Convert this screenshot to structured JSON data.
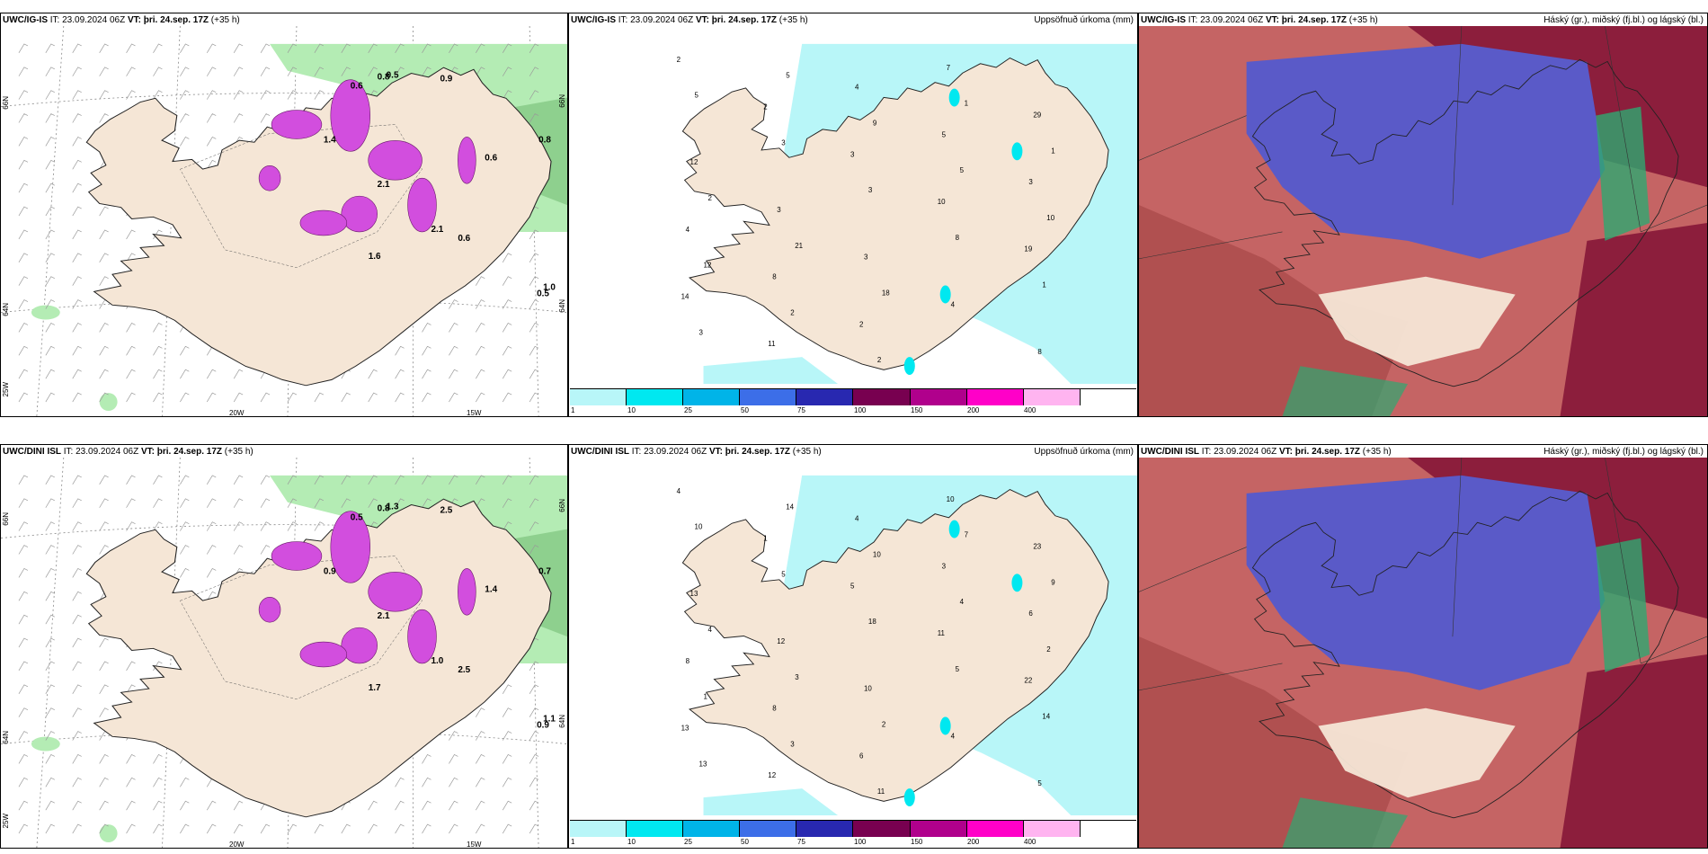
{
  "rows": [
    {
      "model": "UWC/IG-IS",
      "it_label": "IT:",
      "it_value": "23.09.2024 06Z",
      "vt_label": "VT:",
      "vt_value": "þri. 24.sep. 17Z",
      "lead": "(+35 h)"
    },
    {
      "model": "UWC/DINI ISL",
      "it_label": "IT:",
      "it_value": "23.09.2024 06Z",
      "vt_label": "VT:",
      "vt_value": "þri. 24.sep. 17Z",
      "lead": "(+35 h)"
    }
  ],
  "panel_titles": {
    "precip": "Uppsöfnuð úrkoma (mm)",
    "cloud": "Háský (gr.), miðský (fj.bl.) og lágský (bl.)"
  },
  "axis_ticks": {
    "lat_66": "66N",
    "lat_64": "64N",
    "lon_25": "25W",
    "lon_20": "20W",
    "lon_15": "15W"
  },
  "precip_legend": {
    "labels": [
      "1",
      "10",
      "25",
      "50",
      "75",
      "100",
      "150",
      "200",
      "400",
      ""
    ],
    "colors": [
      "#b8f6f8",
      "#00e8f0",
      "#00b4e8",
      "#3c6ee8",
      "#2828b0",
      "#780050",
      "#b0008c",
      "#ff00c8",
      "#ffb4f0",
      "#ffffff"
    ]
  },
  "colors": {
    "land": "#f5e6d6",
    "precip_light": "#b8f6f8",
    "precip_mid": "#00e8f0",
    "snow_green": "#b4ecb4",
    "snow_purple": "#d24ede",
    "cloud_low": "#5a5ac8",
    "cloud_mid": "#b83c3c",
    "cloud_high": "#8c1e3c",
    "cloud_green": "#2ea870"
  },
  "precip_values_top": [
    "2",
    "2",
    "3",
    "10",
    "19",
    "14",
    "11",
    "4",
    "5",
    "3",
    "4",
    "8",
    "2",
    "7",
    "29",
    "12",
    "3",
    "3",
    "4",
    "8",
    "5",
    "3",
    "3",
    "8",
    "1",
    "3",
    "5",
    "9",
    "5",
    "10",
    "12",
    "2",
    "2",
    "1",
    "1",
    "2",
    "21",
    "18"
  ],
  "precip_values_bottom": [
    "4",
    "1",
    "5",
    "11",
    "22",
    "13",
    "12",
    "4",
    "3",
    "6",
    "8",
    "8",
    "6",
    "10",
    "23",
    "13",
    "12",
    "10",
    "4",
    "5",
    "10",
    "5",
    "18",
    "5",
    "14",
    "13",
    "14",
    "10",
    "4",
    "2",
    "1",
    "3",
    "11",
    "7",
    "9",
    "4",
    "3",
    "2"
  ],
  "snow_values_top": [
    "0.6",
    "0.8",
    "0.5",
    "0.9",
    "1.4",
    "2.1",
    "1.6",
    "2.1",
    "0.6",
    "0.6",
    "0.8",
    "1.0",
    "0.5"
  ],
  "snow_values_bottom": [
    "0.5",
    "0.8",
    "1.3",
    "2.5",
    "0.9",
    "2.1",
    "1.7",
    "1.0",
    "2.5",
    "1.4",
    "0.7",
    "1.1",
    "0.9"
  ]
}
